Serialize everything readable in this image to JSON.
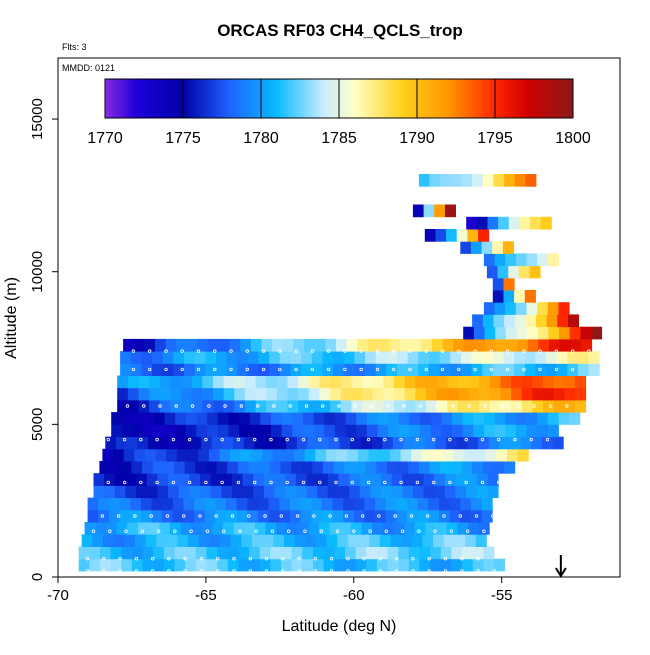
{
  "chart_data": {
    "type": "heatmap",
    "title": "ORCAS RF03 CH4_QCLS_trop",
    "annotations": {
      "flights": "Flts: 3",
      "date": "MMDD: 0121"
    },
    "xlabel": "Latitude (deg N)",
    "ylabel": "Altitude (m)",
    "xlim": [
      -70,
      -51
    ],
    "ylim": [
      0,
      17000
    ],
    "x_ticks": [
      -70,
      -65,
      -60,
      -55
    ],
    "x_tick_labels": [
      "-70",
      "-65",
      "-60",
      "-55"
    ],
    "y_ticks": [
      0,
      5000,
      10000,
      15000
    ],
    "y_tick_labels": [
      "0",
      "5000",
      "10000",
      "15000"
    ],
    "colorbar": {
      "min": 1770,
      "max": 1800,
      "ticks": [
        1770,
        1775,
        1780,
        1785,
        1790,
        1795,
        1800
      ],
      "tick_labels": [
        "1770",
        "1775",
        "1780",
        "1785",
        "1790",
        "1795",
        "1800"
      ],
      "stops": [
        {
          "v": 1770,
          "c": "#8a2be2"
        },
        {
          "v": 1772,
          "c": "#1e00d8"
        },
        {
          "v": 1775,
          "c": "#0000a8"
        },
        {
          "v": 1778,
          "c": "#1e64ff"
        },
        {
          "v": 1781,
          "c": "#0abaff"
        },
        {
          "v": 1784,
          "c": "#c8ecff"
        },
        {
          "v": 1786,
          "c": "#ffffc8"
        },
        {
          "v": 1789,
          "c": "#ffd21e"
        },
        {
          "v": 1792,
          "c": "#ff9600"
        },
        {
          "v": 1795,
          "c": "#ff2800"
        },
        {
          "v": 1797,
          "c": "#d20000"
        },
        {
          "v": 1800,
          "c": "#8b1a1a"
        }
      ]
    },
    "arrow_marker_latitude": -53,
    "grid": false,
    "bands": [
      {
        "alt": 200,
        "lat0": -69.3,
        "lat1": -55.0,
        "v0": 1782,
        "v1": 1781
      },
      {
        "alt": 600,
        "lat0": -69.3,
        "lat1": -55.2,
        "v0": 1781,
        "v1": 1783
      },
      {
        "alt": 1000,
        "lat0": -69.2,
        "lat1": -55.4,
        "v0": 1780,
        "v1": 1782
      },
      {
        "alt": 1400,
        "lat0": -69.1,
        "lat1": -55.3,
        "v0": 1781,
        "v1": 1780
      },
      {
        "alt": 1800,
        "lat0": -69.0,
        "lat1": -55.2,
        "v0": 1779,
        "v1": 1779
      },
      {
        "alt": 2200,
        "lat0": -69.0,
        "lat1": -55.2,
        "v0": 1778,
        "v1": 1779
      },
      {
        "alt": 2600,
        "lat0": -68.8,
        "lat1": -55.1,
        "v0": 1777,
        "v1": 1779
      },
      {
        "alt": 3000,
        "lat0": -68.8,
        "lat1": -55.1,
        "v0": 1776,
        "v1": 1779
      },
      {
        "alt": 3400,
        "lat0": -68.6,
        "lat1": -54.6,
        "v0": 1776,
        "v1": 1780
      },
      {
        "alt": 3800,
        "lat0": -68.5,
        "lat1": -54.0,
        "v0": 1775,
        "v1": 1787
      },
      {
        "alt": 4200,
        "lat0": -68.4,
        "lat1": -53.1,
        "v0": 1775,
        "v1": 1779
      },
      {
        "alt": 4600,
        "lat0": -68.2,
        "lat1": -53.2,
        "v0": 1774,
        "v1": 1781
      },
      {
        "alt": 5000,
        "lat0": -68.2,
        "lat1": -52.3,
        "v0": 1775,
        "v1": 1781
      },
      {
        "alt": 5400,
        "lat0": -68.0,
        "lat1": -52.3,
        "v0": 1776,
        "v1": 1790
      },
      {
        "alt": 5800,
        "lat0": -68.0,
        "lat1": -52.2,
        "v0": 1777,
        "v1": 1796
      },
      {
        "alt": 6200,
        "lat0": -68.0,
        "lat1": -52.0,
        "v0": 1779,
        "v1": 1795
      },
      {
        "alt": 6600,
        "lat0": -67.9,
        "lat1": -51.8,
        "v0": 1778,
        "v1": 1782
      },
      {
        "alt": 7000,
        "lat0": -67.9,
        "lat1": -51.8,
        "v0": 1779,
        "v1": 1786
      },
      {
        "alt": 7400,
        "lat0": -67.8,
        "lat1": -51.8,
        "v0": 1775,
        "v1": 1796
      },
      {
        "alt": 7800,
        "lat0": -56.3,
        "lat1": -51.8,
        "v0": 1776,
        "v1": 1798
      },
      {
        "alt": 8200,
        "lat0": -56.0,
        "lat1": -52.3,
        "v0": 1777,
        "v1": 1797
      },
      {
        "alt": 8600,
        "lat0": -55.6,
        "lat1": -52.6,
        "v0": 1777,
        "v1": 1794
      },
      {
        "alt": 9000,
        "lat0": -55.3,
        "lat1": -53.9,
        "v0": 1776,
        "v1": 1794
      },
      {
        "alt": 9400,
        "lat0": -55.3,
        "lat1": -54.5,
        "v0": 1779,
        "v1": 1794
      },
      {
        "alt": 9800,
        "lat0": -55.5,
        "lat1": -53.7,
        "v0": 1778,
        "v1": 1789
      },
      {
        "alt": 10200,
        "lat0": -55.6,
        "lat1": -53.2,
        "v0": 1777,
        "v1": 1788
      },
      {
        "alt": 10600,
        "lat0": -56.4,
        "lat1": -54.5,
        "v0": 1776,
        "v1": 1792
      },
      {
        "alt": 11000,
        "lat0": -57.6,
        "lat1": -55.4,
        "v0": 1775,
        "v1": 1794
      },
      {
        "alt": 11400,
        "lat0": -56.2,
        "lat1": -53.2,
        "v0": 1774,
        "v1": 1790
      },
      {
        "alt": 11800,
        "lat0": -58.0,
        "lat1": -56.4,
        "v0": 1774,
        "v1": 1798
      },
      {
        "alt": 12800,
        "lat0": -57.8,
        "lat1": -53.8,
        "v0": 1780,
        "v1": 1792
      }
    ],
    "flight_track_levels": [
      {
        "alt": 200,
        "lat0": -69.0,
        "lat1": -55.2
      },
      {
        "alt": 600,
        "lat0": -69.0,
        "lat1": -55.3
      },
      {
        "alt": 1500,
        "lat0": -68.8,
        "lat1": -55.3
      },
      {
        "alt": 2000,
        "lat0": -68.5,
        "lat1": -55.3
      },
      {
        "alt": 3100,
        "lat0": -68.3,
        "lat1": -54.3
      },
      {
        "alt": 4500,
        "lat0": -68.3,
        "lat1": -53.2
      },
      {
        "alt": 5600,
        "lat0": -68.2,
        "lat1": -52.3
      },
      {
        "alt": 6800,
        "lat0": -68.0,
        "lat1": -52.3
      },
      {
        "alt": 7400,
        "lat0": -68.0,
        "lat1": -52.0
      }
    ]
  }
}
